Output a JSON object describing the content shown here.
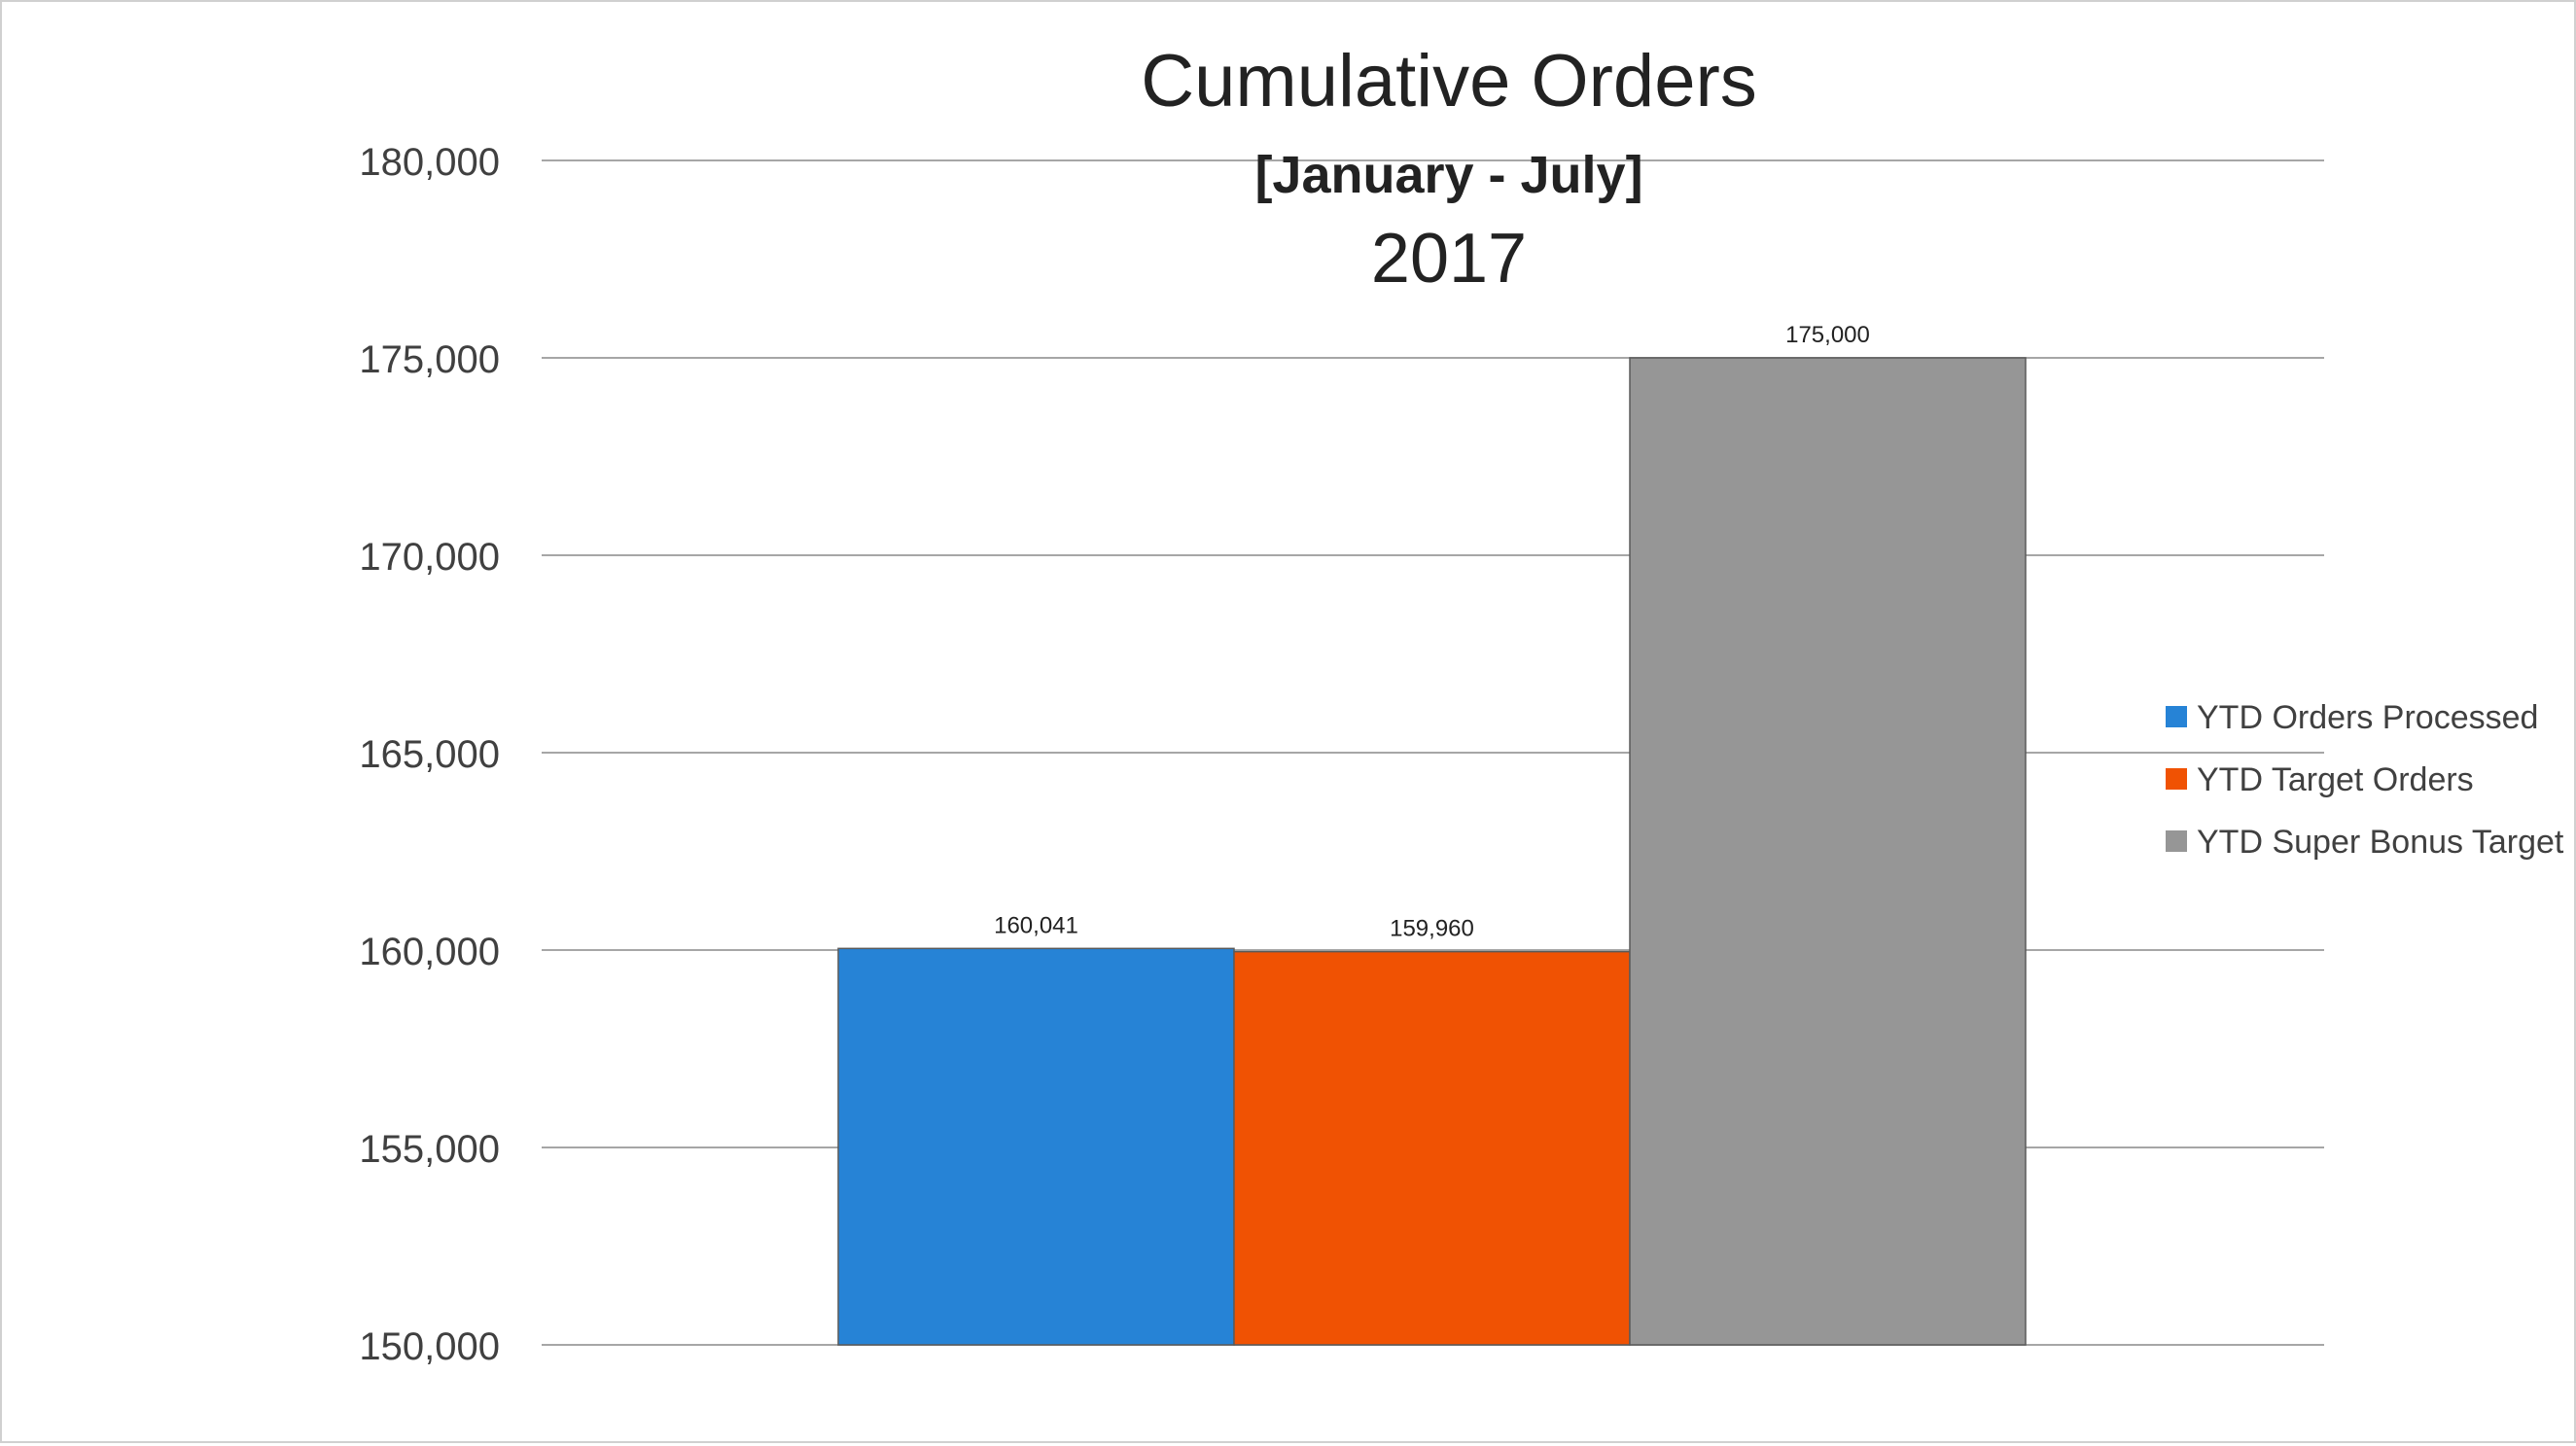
{
  "chart_data": {
    "type": "bar",
    "title": "Cumulative Orders",
    "subtitle": "[January - July]",
    "subtitle2": "2017",
    "xlabel": "",
    "ylabel": "",
    "ylim": [
      150000,
      180000
    ],
    "yticks": [
      150000,
      155000,
      160000,
      165000,
      170000,
      175000,
      180000
    ],
    "ytick_labels": [
      "150,000",
      "155,000",
      "160,000",
      "165,000",
      "170,000",
      "175,000",
      "180,000"
    ],
    "grid": true,
    "legend_position": "right",
    "series": [
      {
        "name": "YTD Orders Processed",
        "value": 160041,
        "label": "160,041",
        "color": "#2683d6"
      },
      {
        "name": "YTD Target Orders",
        "value": 159960,
        "label": "159,960",
        "color": "#f05203"
      },
      {
        "name": "YTD Super Bonus Target",
        "value": 175000,
        "label": "175,000",
        "color": "#969696"
      }
    ]
  }
}
